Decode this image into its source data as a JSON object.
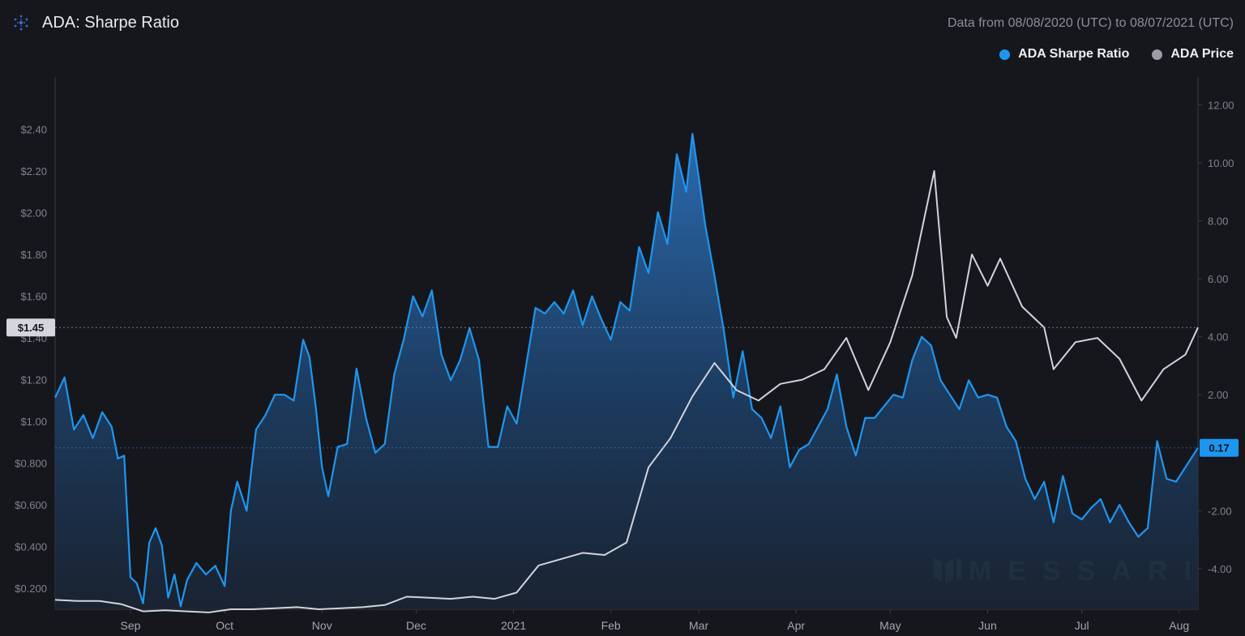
{
  "header": {
    "title": "ADA: Sharpe Ratio",
    "date_range": "Data from 08/08/2020 (UTC) to 08/07/2021 (UTC)"
  },
  "legend": [
    {
      "label": "ADA Sharpe Ratio",
      "color": "#1e96f0"
    },
    {
      "label": "ADA Price",
      "color": "#9a9da6"
    }
  ],
  "watermark": "MESSARI",
  "colors": {
    "sharpe": "#1e96f0",
    "price": "#d0d4de",
    "background": "#16171c"
  },
  "chart_data": {
    "type": "line",
    "title": "ADA: Sharpe Ratio",
    "x_range": [
      "2020-08-08",
      "2021-08-07"
    ],
    "x_month_labels": [
      "Sep",
      "Oct",
      "Nov",
      "Dec",
      "2021",
      "Feb",
      "Mar",
      "Apr",
      "May",
      "Jun",
      "Jul",
      "Aug"
    ],
    "left_axis": {
      "series": "ADA Price",
      "ticks": [
        "$0.200",
        "$0.400",
        "$0.600",
        "$0.800",
        "$1.00",
        "$1.20",
        "$1.40",
        "$1.60",
        "$1.80",
        "$2.00",
        "$2.20",
        "$2.40"
      ],
      "ylim": [
        0.1,
        2.6
      ],
      "current": "$1.45"
    },
    "right_axis": {
      "series": "ADA Sharpe Ratio",
      "ticks": [
        "-4.00",
        "-2.00",
        "2.00",
        "4.00",
        "6.00",
        "8.00",
        "10.00",
        "12.00"
      ],
      "ylim": [
        -5.4,
        12.6
      ],
      "current": "0.17"
    },
    "series": [
      {
        "name": "ADA Sharpe Ratio",
        "axis": "right",
        "style": "area",
        "points": [
          [
            "2020-08-08",
            1.9
          ],
          [
            "2020-08-11",
            2.6
          ],
          [
            "2020-08-14",
            0.8
          ],
          [
            "2020-08-17",
            1.3
          ],
          [
            "2020-08-20",
            0.5
          ],
          [
            "2020-08-23",
            1.4
          ],
          [
            "2020-08-26",
            0.9
          ],
          [
            "2020-08-28",
            -0.2
          ],
          [
            "2020-08-30",
            -0.1
          ],
          [
            "2020-09-01",
            -4.3
          ],
          [
            "2020-09-03",
            -4.5
          ],
          [
            "2020-09-05",
            -5.2
          ],
          [
            "2020-09-07",
            -3.1
          ],
          [
            "2020-09-09",
            -2.6
          ],
          [
            "2020-09-11",
            -3.2
          ],
          [
            "2020-09-13",
            -5.0
          ],
          [
            "2020-09-15",
            -4.2
          ],
          [
            "2020-09-17",
            -5.3
          ],
          [
            "2020-09-19",
            -4.4
          ],
          [
            "2020-09-22",
            -3.8
          ],
          [
            "2020-09-25",
            -4.2
          ],
          [
            "2020-09-28",
            -3.9
          ],
          [
            "2020-10-01",
            -4.6
          ],
          [
            "2020-10-03",
            -2.0
          ],
          [
            "2020-10-05",
            -1.0
          ],
          [
            "2020-10-08",
            -2.0
          ],
          [
            "2020-10-11",
            0.8
          ],
          [
            "2020-10-14",
            1.3
          ],
          [
            "2020-10-17",
            2.0
          ],
          [
            "2020-10-20",
            2.0
          ],
          [
            "2020-10-23",
            1.8
          ],
          [
            "2020-10-26",
            3.9
          ],
          [
            "2020-10-28",
            3.3
          ],
          [
            "2020-10-30",
            1.6
          ],
          [
            "2020-11-01",
            -0.5
          ],
          [
            "2020-11-03",
            -1.5
          ],
          [
            "2020-11-06",
            0.2
          ],
          [
            "2020-11-09",
            0.3
          ],
          [
            "2020-11-12",
            2.9
          ],
          [
            "2020-11-15",
            1.2
          ],
          [
            "2020-11-18",
            0.0
          ],
          [
            "2020-11-21",
            0.3
          ],
          [
            "2020-11-24",
            2.7
          ],
          [
            "2020-11-27",
            3.9
          ],
          [
            "2020-11-30",
            5.4
          ],
          [
            "2020-12-03",
            4.7
          ],
          [
            "2020-12-06",
            5.6
          ],
          [
            "2020-12-09",
            3.4
          ],
          [
            "2020-12-12",
            2.5
          ],
          [
            "2020-12-15",
            3.2
          ],
          [
            "2020-12-18",
            4.3
          ],
          [
            "2020-12-21",
            3.2
          ],
          [
            "2020-12-24",
            0.2
          ],
          [
            "2020-12-27",
            0.2
          ],
          [
            "2020-12-30",
            1.6
          ],
          [
            "2021-01-02",
            1.0
          ],
          [
            "2021-01-05",
            3.0
          ],
          [
            "2021-01-08",
            5.0
          ],
          [
            "2021-01-11",
            4.8
          ],
          [
            "2021-01-14",
            5.2
          ],
          [
            "2021-01-17",
            4.8
          ],
          [
            "2021-01-20",
            5.6
          ],
          [
            "2021-01-23",
            4.4
          ],
          [
            "2021-01-26",
            5.4
          ],
          [
            "2021-01-29",
            4.6
          ],
          [
            "2021-02-01",
            3.9
          ],
          [
            "2021-02-04",
            5.2
          ],
          [
            "2021-02-07",
            4.9
          ],
          [
            "2021-02-10",
            7.1
          ],
          [
            "2021-02-13",
            6.2
          ],
          [
            "2021-02-16",
            8.3
          ],
          [
            "2021-02-19",
            7.2
          ],
          [
            "2021-02-22",
            10.3
          ],
          [
            "2021-02-25",
            9.0
          ],
          [
            "2021-02-27",
            11.0
          ],
          [
            "2021-03-01",
            9.5
          ],
          [
            "2021-03-03",
            7.9
          ],
          [
            "2021-03-06",
            6.1
          ],
          [
            "2021-03-09",
            4.2
          ],
          [
            "2021-03-12",
            1.9
          ],
          [
            "2021-03-15",
            3.5
          ],
          [
            "2021-03-18",
            1.5
          ],
          [
            "2021-03-21",
            1.2
          ],
          [
            "2021-03-24",
            0.5
          ],
          [
            "2021-03-27",
            1.6
          ],
          [
            "2021-03-30",
            -0.5
          ],
          [
            "2021-04-02",
            0.1
          ],
          [
            "2021-04-05",
            0.3
          ],
          [
            "2021-04-08",
            0.9
          ],
          [
            "2021-04-11",
            1.5
          ],
          [
            "2021-04-14",
            2.7
          ],
          [
            "2021-04-17",
            0.9
          ],
          [
            "2021-04-20",
            -0.1
          ],
          [
            "2021-04-23",
            1.2
          ],
          [
            "2021-04-26",
            1.2
          ],
          [
            "2021-04-29",
            1.6
          ],
          [
            "2021-05-02",
            2.0
          ],
          [
            "2021-05-05",
            1.9
          ],
          [
            "2021-05-08",
            3.2
          ],
          [
            "2021-05-11",
            4.0
          ],
          [
            "2021-05-14",
            3.7
          ],
          [
            "2021-05-17",
            2.5
          ],
          [
            "2021-05-20",
            2.0
          ],
          [
            "2021-05-23",
            1.5
          ],
          [
            "2021-05-26",
            2.5
          ],
          [
            "2021-05-29",
            1.9
          ],
          [
            "2021-06-01",
            2.0
          ],
          [
            "2021-06-04",
            1.9
          ],
          [
            "2021-06-07",
            0.9
          ],
          [
            "2021-06-10",
            0.4
          ],
          [
            "2021-06-13",
            -0.9
          ],
          [
            "2021-06-16",
            -1.6
          ],
          [
            "2021-06-19",
            -1.0
          ],
          [
            "2021-06-22",
            -2.4
          ],
          [
            "2021-06-25",
            -0.8
          ],
          [
            "2021-06-28",
            -2.1
          ],
          [
            "2021-07-01",
            -2.3
          ],
          [
            "2021-07-04",
            -1.9
          ],
          [
            "2021-07-07",
            -1.6
          ],
          [
            "2021-07-10",
            -2.4
          ],
          [
            "2021-07-13",
            -1.8
          ],
          [
            "2021-07-16",
            -2.4
          ],
          [
            "2021-07-19",
            -2.9
          ],
          [
            "2021-07-22",
            -2.6
          ],
          [
            "2021-07-25",
            0.4
          ],
          [
            "2021-07-28",
            -0.9
          ],
          [
            "2021-07-31",
            -1.0
          ],
          [
            "2021-08-03",
            -0.5
          ],
          [
            "2021-08-07",
            0.17
          ]
        ]
      },
      {
        "name": "ADA Price",
        "axis": "left",
        "style": "line",
        "points": [
          [
            "2020-08-08",
            0.145
          ],
          [
            "2020-08-15",
            0.14
          ],
          [
            "2020-08-22",
            0.14
          ],
          [
            "2020-08-29",
            0.125
          ],
          [
            "2020-09-05",
            0.09
          ],
          [
            "2020-09-12",
            0.095
          ],
          [
            "2020-09-19",
            0.09
          ],
          [
            "2020-09-26",
            0.085
          ],
          [
            "2020-10-03",
            0.1
          ],
          [
            "2020-10-10",
            0.1
          ],
          [
            "2020-10-17",
            0.105
          ],
          [
            "2020-10-24",
            0.11
          ],
          [
            "2020-10-31",
            0.1
          ],
          [
            "2020-11-07",
            0.105
          ],
          [
            "2020-11-14",
            0.11
          ],
          [
            "2020-11-21",
            0.12
          ],
          [
            "2020-11-28",
            0.16
          ],
          [
            "2020-12-05",
            0.155
          ],
          [
            "2020-12-12",
            0.15
          ],
          [
            "2020-12-19",
            0.16
          ],
          [
            "2020-12-26",
            0.15
          ],
          [
            "2021-01-02",
            0.18
          ],
          [
            "2021-01-09",
            0.31
          ],
          [
            "2021-01-16",
            0.34
          ],
          [
            "2021-01-23",
            0.37
          ],
          [
            "2021-01-30",
            0.36
          ],
          [
            "2021-02-06",
            0.42
          ],
          [
            "2021-02-13",
            0.78
          ],
          [
            "2021-02-20",
            0.92
          ],
          [
            "2021-02-27",
            1.12
          ],
          [
            "2021-03-06",
            1.28
          ],
          [
            "2021-03-13",
            1.15
          ],
          [
            "2021-03-20",
            1.1
          ],
          [
            "2021-03-27",
            1.18
          ],
          [
            "2021-04-03",
            1.2
          ],
          [
            "2021-04-10",
            1.25
          ],
          [
            "2021-04-17",
            1.4
          ],
          [
            "2021-04-24",
            1.15
          ],
          [
            "2021-05-01",
            1.38
          ],
          [
            "2021-05-08",
            1.7
          ],
          [
            "2021-05-15",
            2.2
          ],
          [
            "2021-05-19",
            1.5
          ],
          [
            "2021-05-22",
            1.4
          ],
          [
            "2021-05-27",
            1.8
          ],
          [
            "2021-06-01",
            1.65
          ],
          [
            "2021-06-05",
            1.78
          ],
          [
            "2021-06-12",
            1.55
          ],
          [
            "2021-06-19",
            1.45
          ],
          [
            "2021-06-22",
            1.25
          ],
          [
            "2021-06-29",
            1.38
          ],
          [
            "2021-07-06",
            1.4
          ],
          [
            "2021-07-13",
            1.3
          ],
          [
            "2021-07-20",
            1.1
          ],
          [
            "2021-07-27",
            1.25
          ],
          [
            "2021-08-03",
            1.32
          ],
          [
            "2021-08-07",
            1.45
          ]
        ]
      }
    ]
  }
}
